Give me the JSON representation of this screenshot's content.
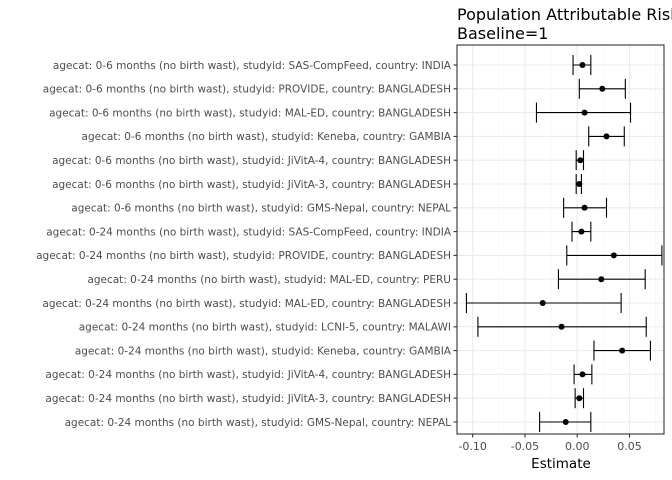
{
  "chart_data": {
    "type": "errorbar",
    "title": "Population Attributable Risk",
    "subtitle": "Baseline=1",
    "xlabel": "Estimate",
    "ylabel": "",
    "xlim": [
      -0.115,
      0.083
    ],
    "xticks": [
      -0.1,
      -0.05,
      0.0,
      0.05
    ],
    "xtick_labels": [
      "-0.10",
      "-0.05",
      "0.00",
      "0.05"
    ],
    "grid": true,
    "colors": {
      "mark": "#000000",
      "grid_major": "#ebebeb",
      "grid_minor": "#f5f5f5",
      "panel_border": "#333333",
      "tick_text": "#4d4d4d"
    },
    "rows": [
      {
        "label": "agecat: 0-6 months (no birth wast), studyid: SAS-CompFeed, country: INDIA",
        "estimate": 0.005,
        "lower": -0.004,
        "upper": 0.013
      },
      {
        "label": "agecat: 0-6 months (no birth wast), studyid: PROVIDE, country: BANGLADESH",
        "estimate": 0.024,
        "lower": 0.002,
        "upper": 0.046
      },
      {
        "label": "agecat: 0-6 months (no birth wast), studyid: MAL-ED, country: BANGLADESH",
        "estimate": 0.007,
        "lower": -0.039,
        "upper": 0.051
      },
      {
        "label": "agecat: 0-6 months (no birth wast), studyid: Keneba, country: GAMBIA",
        "estimate": 0.028,
        "lower": 0.011,
        "upper": 0.045
      },
      {
        "label": "agecat: 0-6 months (no birth wast), studyid: JiVitA-4, country: BANGLADESH",
        "estimate": 0.003,
        "lower": -0.001,
        "upper": 0.006
      },
      {
        "label": "agecat: 0-6 months (no birth wast), studyid: JiVitA-3, country: BANGLADESH",
        "estimate": 0.002,
        "lower": -0.001,
        "upper": 0.004
      },
      {
        "label": "agecat: 0-6 months (no birth wast), studyid: GMS-Nepal, country: NEPAL",
        "estimate": 0.007,
        "lower": -0.013,
        "upper": 0.028
      },
      {
        "label": "agecat: 0-24 months (no birth wast), studyid: SAS-CompFeed, country: INDIA",
        "estimate": 0.004,
        "lower": -0.005,
        "upper": 0.013
      },
      {
        "label": "agecat: 0-24 months (no birth wast), studyid: PROVIDE, country: BANGLADESH",
        "estimate": 0.035,
        "lower": -0.01,
        "upper": 0.081
      },
      {
        "label": "agecat: 0-24 months (no birth wast), studyid: MAL-ED, country: PERU",
        "estimate": 0.023,
        "lower": -0.018,
        "upper": 0.065
      },
      {
        "label": "agecat: 0-24 months (no birth wast), studyid: MAL-ED, country: BANGLADESH",
        "estimate": -0.033,
        "lower": -0.106,
        "upper": 0.042
      },
      {
        "label": "agecat: 0-24 months (no birth wast), studyid: LCNI-5, country: MALAWI",
        "estimate": -0.015,
        "lower": -0.095,
        "upper": 0.066
      },
      {
        "label": "agecat: 0-24 months (no birth wast), studyid: Keneba, country: GAMBIA",
        "estimate": 0.043,
        "lower": 0.016,
        "upper": 0.07
      },
      {
        "label": "agecat: 0-24 months (no birth wast), studyid: JiVitA-4, country: BANGLADESH",
        "estimate": 0.005,
        "lower": -0.003,
        "upper": 0.014
      },
      {
        "label": "agecat: 0-24 months (no birth wast), studyid: JiVitA-3, country: BANGLADESH",
        "estimate": 0.002,
        "lower": -0.002,
        "upper": 0.006
      },
      {
        "label": "agecat: 0-24 months (no birth wast), studyid: GMS-Nepal, country: NEPAL",
        "estimate": -0.011,
        "lower": -0.036,
        "upper": 0.013
      }
    ]
  }
}
